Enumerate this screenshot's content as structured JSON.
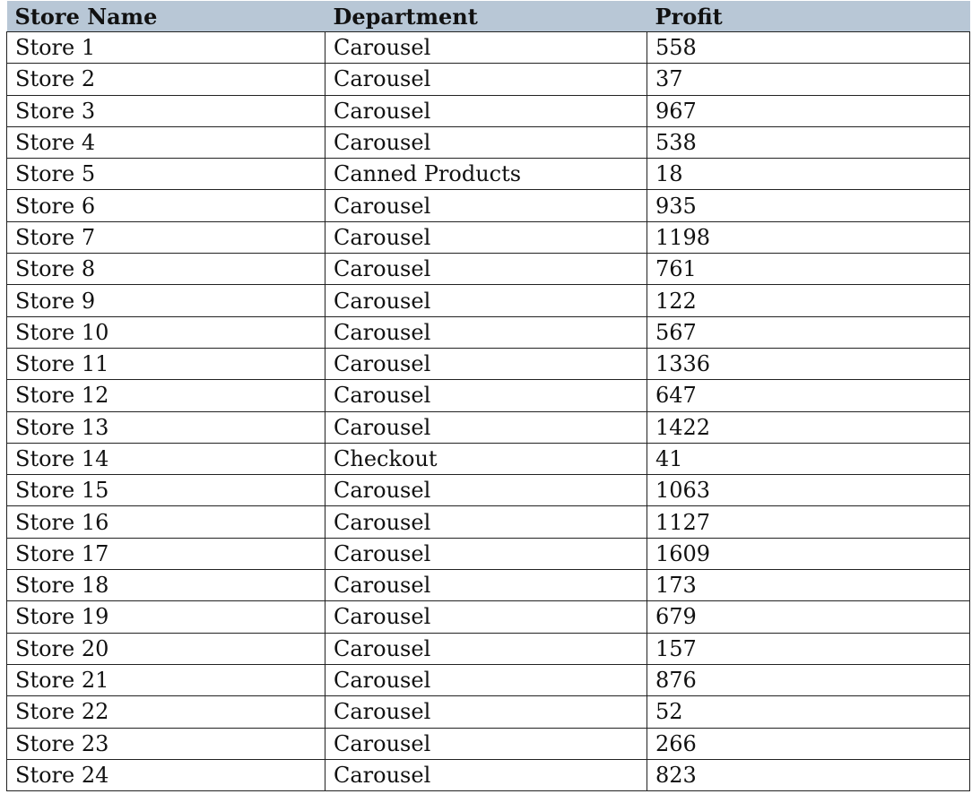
{
  "colors": {
    "header_bg": "#b8c7d6",
    "border": "#222222",
    "text": "#111111"
  },
  "chart_data": {
    "type": "table",
    "columns": [
      "Store Name",
      "Department",
      "Profit"
    ],
    "rows": [
      [
        "Store 1",
        "Carousel",
        "558"
      ],
      [
        "Store 2",
        "Carousel",
        "37"
      ],
      [
        "Store 3",
        "Carousel",
        "967"
      ],
      [
        "Store 4",
        "Carousel",
        "538"
      ],
      [
        "Store 5",
        "Canned Products",
        "18"
      ],
      [
        "Store 6",
        "Carousel",
        "935"
      ],
      [
        "Store 7",
        "Carousel",
        "1198"
      ],
      [
        "Store 8",
        "Carousel",
        "761"
      ],
      [
        "Store 9",
        "Carousel",
        "122"
      ],
      [
        "Store 10",
        "Carousel",
        "567"
      ],
      [
        "Store 11",
        "Carousel",
        "1336"
      ],
      [
        "Store 12",
        "Carousel",
        "647"
      ],
      [
        "Store 13",
        "Carousel",
        "1422"
      ],
      [
        "Store 14",
        "Checkout",
        "41"
      ],
      [
        "Store 15",
        "Carousel",
        "1063"
      ],
      [
        "Store 16",
        "Carousel",
        "1127"
      ],
      [
        "Store 17",
        "Carousel",
        "1609"
      ],
      [
        "Store 18",
        "Carousel",
        "173"
      ],
      [
        "Store 19",
        "Carousel",
        "679"
      ],
      [
        "Store 20",
        "Carousel",
        "157"
      ],
      [
        "Store 21",
        "Carousel",
        "876"
      ],
      [
        "Store 22",
        "Carousel",
        "52"
      ],
      [
        "Store 23",
        "Carousel",
        "266"
      ],
      [
        "Store 24",
        "Carousel",
        "823"
      ]
    ]
  }
}
